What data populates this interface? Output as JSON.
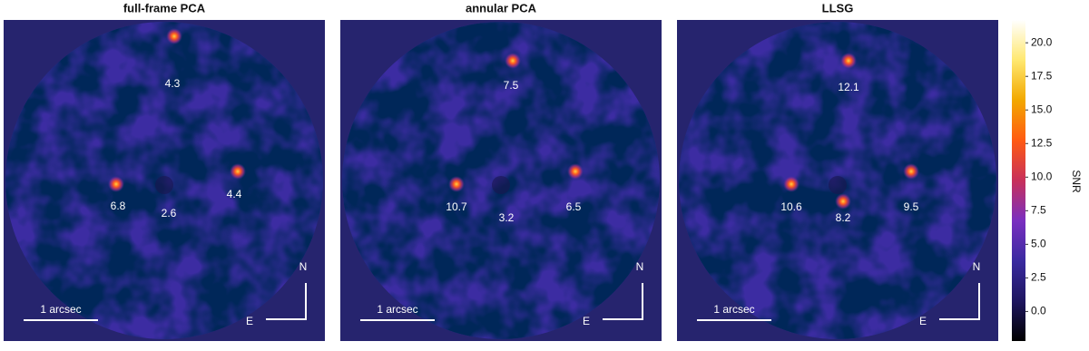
{
  "panels": [
    {
      "title": "full-frame PCA",
      "snr_labels": [
        4.3,
        6.8,
        2.6,
        4.4
      ],
      "scale_bar": "1 arcsec",
      "north": "N",
      "east": "E"
    },
    {
      "title": "annular PCA",
      "snr_labels": [
        7.5,
        10.7,
        3.2,
        6.5
      ],
      "scale_bar": "1 arcsec",
      "north": "N",
      "east": "E"
    },
    {
      "title": "LLSG",
      "snr_labels": [
        12.1,
        10.6,
        8.2,
        9.5
      ],
      "scale_bar": "1 arcsec",
      "north": "N",
      "east": "E"
    }
  ],
  "colorbar": {
    "label": "SNR",
    "clim": [
      -2.2,
      21.7
    ],
    "ticks": [
      {
        "value": 0,
        "label": "0.0"
      },
      2.5,
      {
        "value": 5,
        "label": "5.0"
      },
      7.5,
      {
        "value": 10,
        "label": "10.0"
      },
      12.5,
      {
        "value": 15,
        "label": "15.0"
      },
      17.5,
      {
        "value": 20,
        "label": "20.0"
      }
    ],
    "colormap": [
      "#000000",
      "#1e1660",
      "#3a2aa0",
      "#7a2fc0",
      "#c8305a",
      "#ff5a12",
      "#f2a800",
      "#ffe870",
      "#ffffff"
    ]
  }
}
